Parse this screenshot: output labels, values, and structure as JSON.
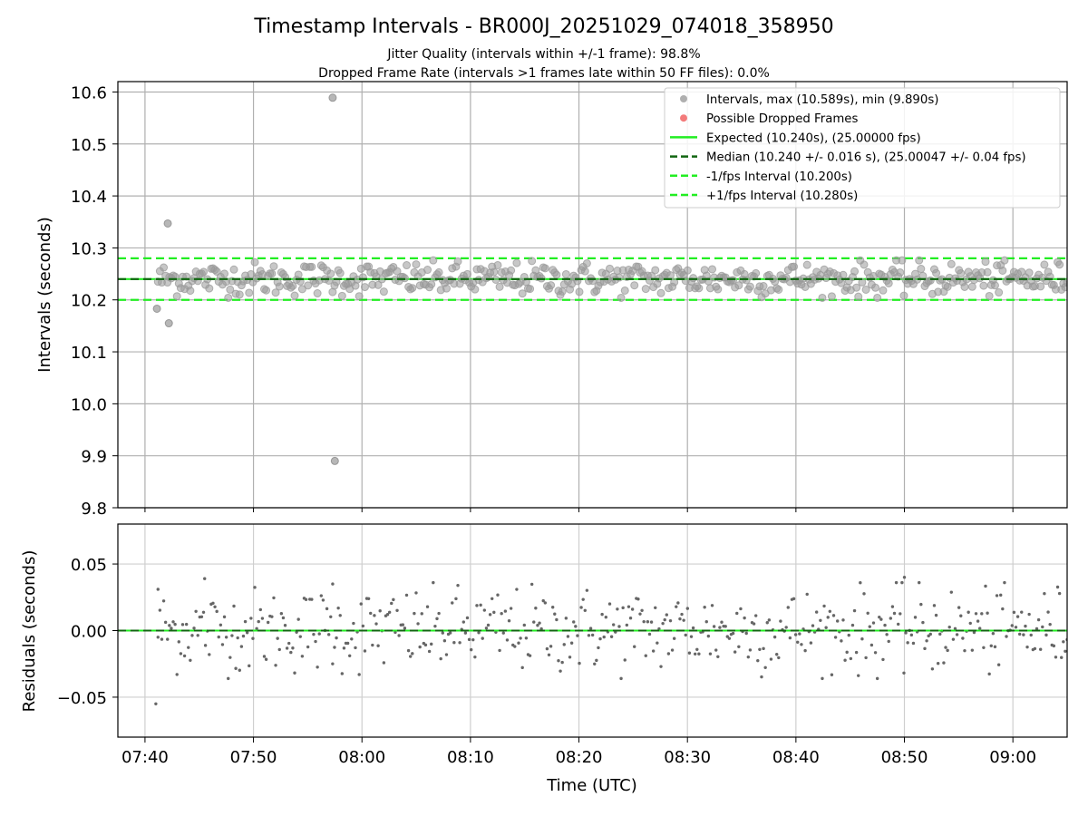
{
  "chart_data": {
    "type": "scatter",
    "title": "Timestamp Intervals - BR000J_20251029_074018_358950",
    "subtitle_lines": [
      "Jitter Quality (intervals within +/-1 frame): 98.8%",
      "Dropped Frame Rate (intervals >1 frames late within 50 FF files): 0.0%"
    ],
    "xlabel": "Time (UTC)",
    "x_unit": "minutes since 07:40 UTC",
    "xlim": [
      -2.5,
      85
    ],
    "x_ticks": [
      0,
      10,
      20,
      30,
      40,
      50,
      60,
      70,
      80
    ],
    "x_tick_labels": [
      "07:40",
      "07:50",
      "08:00",
      "08:10",
      "08:20",
      "08:30",
      "08:40",
      "08:50",
      "09:00"
    ],
    "top_panel": {
      "ylabel": "Intervals (seconds)",
      "ylim": [
        9.8,
        10.62
      ],
      "y_ticks": [
        9.8,
        9.9,
        10.0,
        10.1,
        10.2,
        10.3,
        10.4,
        10.5,
        10.6
      ],
      "y_tick_labels": [
        "9.8",
        "9.9",
        "10.0",
        "10.1",
        "10.2",
        "10.3",
        "10.4",
        "10.5",
        "10.6"
      ],
      "expected": 10.24,
      "median": 10.24,
      "minus_interval": 10.2,
      "plus_interval": 10.28,
      "outliers": [
        {
          "x": 1.1,
          "y": 10.183
        },
        {
          "x": 2.1,
          "y": 10.347
        },
        {
          "x": 2.2,
          "y": 10.155
        },
        {
          "x": 17.3,
          "y": 10.589
        },
        {
          "x": 17.5,
          "y": 9.89
        }
      ]
    },
    "bottom_panel": {
      "ylabel": "Residuals (seconds)",
      "ylim": [
        -0.08,
        0.08
      ],
      "y_ticks": [
        -0.05,
        0.0,
        0.05
      ],
      "y_tick_labels": [
        "−0.05",
        "0.00",
        "0.05"
      ],
      "zero_line": 0.0,
      "outliers": [
        {
          "x": 1.0,
          "y": -0.055
        },
        {
          "x": 1.2,
          "y": 0.031
        },
        {
          "x": 5.5,
          "y": 0.039
        },
        {
          "x": 17.3,
          "y": 0.035
        },
        {
          "x": 70.0,
          "y": 0.04
        }
      ]
    },
    "series": [
      {
        "name": "Intervals, max (10.589s), min (9.890s)",
        "color": "#999999",
        "count": 480,
        "std": 0.016
      },
      {
        "name": "Possible Dropped Frames",
        "color": "#f08080",
        "count": 0
      }
    ],
    "legend": {
      "position": "top-right",
      "entries": [
        {
          "label": "Intervals, max (10.589s), min (9.890s)",
          "style": "marker",
          "color": "#a6a6a6"
        },
        {
          "label": "Possible Dropped Frames",
          "style": "marker",
          "color": "#f26d6d"
        },
        {
          "label": "Expected (10.240s), (25.00000 fps)",
          "style": "solid",
          "color": "#22ee22"
        },
        {
          "label": "Median (10.240 +/- 0.016 s), (25.00047 +/- 0.04 fps)",
          "style": "dashed",
          "color": "#116611"
        },
        {
          "label": "-1/fps Interval (10.200s)",
          "style": "dashed",
          "color": "#22ee22"
        },
        {
          "label": "+1/fps Interval (10.280s)",
          "style": "dashed",
          "color": "#22ee22"
        }
      ]
    }
  },
  "colors": {
    "expected_line": "#22ee22",
    "median_line": "#116611",
    "interval_lines": "#22ee22",
    "points": "#999999",
    "residual_points": "#666666",
    "grid": "#b0b0b0"
  }
}
